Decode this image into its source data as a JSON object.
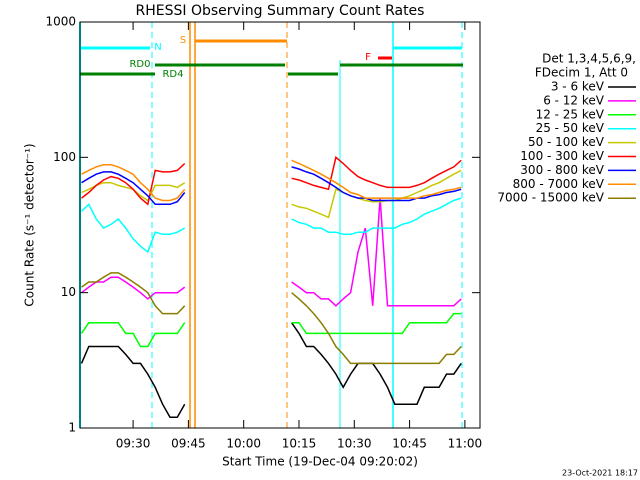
{
  "chart_data": {
    "type": "line",
    "title": "RHESSI Observing Summary Count Rates",
    "xlabel": "Start Time (19-Dec-04 09:20:02)",
    "ylabel": "Count Rate (s⁻¹ detector⁻¹)",
    "legend_header": [
      "Det 1,3,4,5,6,9,",
      "FDecim 1, Att 0"
    ],
    "footer": "23-Oct-2021 18:17",
    "annotations": [
      "N",
      "RD0",
      "RD4",
      "S",
      "F"
    ],
    "log_y": true,
    "legend": "right",
    "xlim": [
      15.6,
      124.1
    ],
    "xticks": [
      {
        "value": 30,
        "label": "09:30"
      },
      {
        "value": 45,
        "label": "09:45"
      },
      {
        "value": 60,
        "label": "10:00"
      },
      {
        "value": 75,
        "label": "10:15"
      },
      {
        "value": 90,
        "label": "10:30"
      },
      {
        "value": 105,
        "label": "10:45"
      },
      {
        "value": 120,
        "label": "11:00"
      }
    ],
    "ylim": [
      1,
      1000
    ],
    "yticks": [
      1,
      10,
      100,
      1000
    ],
    "x": [
      16,
      18,
      20,
      22,
      24,
      26,
      28,
      30,
      32,
      34,
      36,
      38,
      40,
      42,
      44,
      60,
      73,
      75,
      77,
      79,
      81,
      83,
      85,
      87,
      89,
      91,
      93,
      95,
      97,
      99,
      101,
      103,
      105,
      107,
      109,
      111,
      113,
      115,
      117,
      119
    ],
    "series": [
      {
        "name": "3 - 6 keV",
        "color": "#000000",
        "values": [
          3,
          4,
          4,
          4,
          4,
          4,
          3.5,
          3,
          3,
          2.5,
          2,
          1.5,
          1.2,
          1.2,
          1.5,
          null,
          6,
          5,
          4,
          4,
          3.5,
          3,
          2.5,
          2,
          2.5,
          3,
          3,
          3,
          2.5,
          2,
          1.5,
          1.5,
          1.5,
          1.5,
          2,
          2,
          2,
          2.5,
          2.5,
          3
        ]
      },
      {
        "name": "6 - 12 keV",
        "color": "#ff00ff",
        "values": [
          10,
          11,
          12,
          12,
          13,
          13,
          12,
          11,
          10,
          9,
          10,
          10,
          10,
          10,
          11,
          null,
          12,
          11,
          10,
          10,
          9,
          9,
          8,
          9,
          10,
          20,
          30,
          8,
          50,
          8,
          8,
          8,
          8,
          8,
          8,
          8,
          8,
          8,
          8,
          9
        ]
      },
      {
        "name": "12 - 25 keV",
        "color": "#00ff00",
        "values": [
          5,
          6,
          6,
          6,
          6,
          6,
          5,
          5,
          4,
          4,
          5,
          5,
          5,
          5,
          6,
          null,
          6,
          6,
          5,
          5,
          5,
          5,
          5,
          5,
          5,
          5,
          5,
          5,
          5,
          5,
          5,
          5,
          6,
          6,
          6,
          6,
          6,
          6,
          7,
          7
        ]
      },
      {
        "name": "25 - 50 keV",
        "color": "#00ffff",
        "values": [
          40,
          45,
          35,
          30,
          32,
          35,
          30,
          25,
          22,
          20,
          28,
          27,
          27,
          28,
          30,
          null,
          35,
          33,
          32,
          30,
          30,
          28,
          28,
          27,
          27,
          28,
          28,
          30,
          30,
          30,
          30,
          32,
          33,
          35,
          38,
          40,
          42,
          45,
          48,
          50
        ]
      },
      {
        "name": "50 - 100 keV",
        "color": "#c8c800",
        "values": [
          55,
          58,
          62,
          65,
          65,
          62,
          60,
          58,
          52,
          48,
          62,
          62,
          62,
          60,
          65,
          null,
          45,
          43,
          42,
          40,
          38,
          36,
          58,
          55,
          52,
          50,
          48,
          47,
          47,
          48,
          48,
          50,
          52,
          55,
          58,
          62,
          65,
          70,
          75,
          80
        ]
      },
      {
        "name": "100 - 300 keV",
        "color": "#ff0000",
        "values": [
          50,
          55,
          62,
          68,
          72,
          70,
          65,
          58,
          50,
          45,
          80,
          78,
          78,
          80,
          90,
          null,
          70,
          68,
          65,
          62,
          60,
          58,
          100,
          90,
          80,
          72,
          68,
          65,
          62,
          60,
          60,
          60,
          60,
          62,
          65,
          70,
          75,
          80,
          85,
          95
        ]
      },
      {
        "name": "300 - 800 keV",
        "color": "#0000ff",
        "values": [
          65,
          70,
          75,
          78,
          78,
          75,
          70,
          65,
          58,
          52,
          45,
          45,
          45,
          47,
          55,
          null,
          85,
          82,
          78,
          75,
          70,
          65,
          60,
          55,
          52,
          50,
          50,
          48,
          48,
          48,
          48,
          48,
          48,
          50,
          50,
          52,
          53,
          55,
          56,
          58
        ]
      },
      {
        "name": "800 - 7000 keV",
        "color": "#ff8c00",
        "values": [
          75,
          80,
          85,
          88,
          88,
          85,
          80,
          75,
          65,
          58,
          50,
          48,
          48,
          50,
          58,
          null,
          95,
          90,
          85,
          80,
          75,
          70,
          65,
          60,
          55,
          53,
          50,
          50,
          50,
          50,
          50,
          50,
          50,
          50,
          52,
          53,
          55,
          57,
          58,
          60
        ]
      },
      {
        "name": "7000 - 15000 keV",
        "color": "#8b7d00",
        "values": [
          11,
          12,
          12,
          13,
          14,
          14,
          13,
          12,
          11,
          10,
          8,
          7,
          7,
          7,
          8,
          null,
          10,
          9,
          8,
          7,
          6,
          5,
          4,
          3.5,
          3,
          3,
          3,
          3,
          3,
          3,
          3,
          3,
          3,
          3,
          3,
          3,
          3,
          3.5,
          3.5,
          4
        ]
      }
    ]
  }
}
